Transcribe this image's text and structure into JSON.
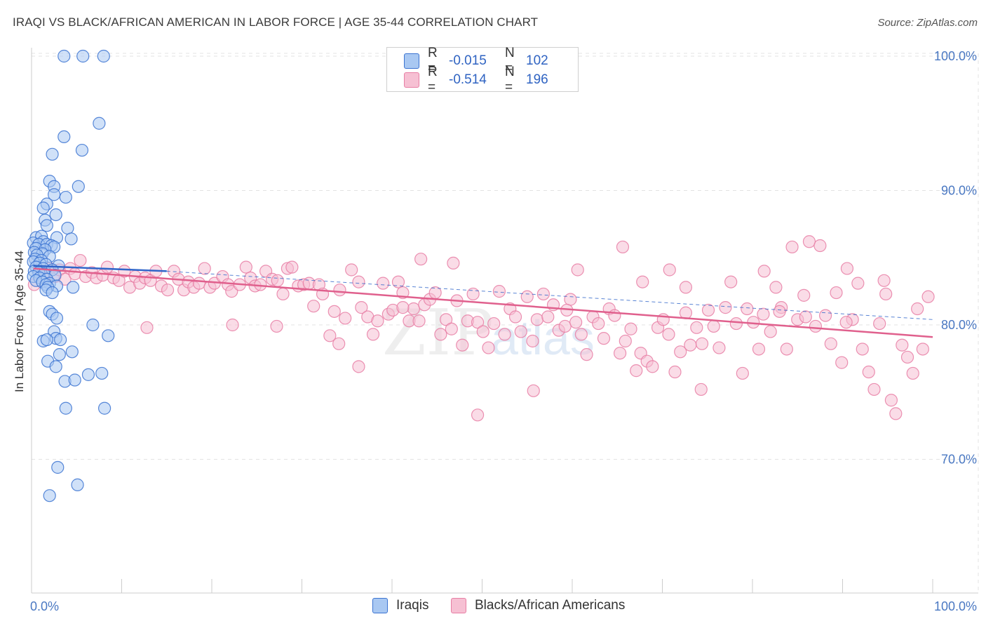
{
  "title": "IRAQI VS BLACK/AFRICAN AMERICAN IN LABOR FORCE | AGE 35-44 CORRELATION CHART",
  "source": "Source: ZipAtlas.com",
  "watermark": "ZIPatlas",
  "colors": {
    "iraqi_fill": "#a9c8f2",
    "iraqi_stroke": "#3b73d1",
    "black_fill": "#f6c0d3",
    "black_stroke": "#e87ea4",
    "iraqi_line": "#3065c9",
    "black_line": "#e0608d",
    "grid": "#e3e3e3",
    "tick_text": "#4a78c2"
  },
  "legend_top": [
    {
      "r_label": "R =",
      "r_value": "-0.015",
      "n_label": "N =",
      "n_value": "102"
    },
    {
      "r_label": "R =",
      "r_value": "-0.514",
      "n_label": "N =",
      "n_value": "196"
    }
  ],
  "legend_bottom": [
    "Iraqis",
    "Blacks/African Americans"
  ],
  "chart_data": {
    "type": "scatter",
    "title": "IRAQI VS BLACK/AFRICAN AMERICAN IN LABOR FORCE | AGE 35-44 CORRELATION CHART",
    "xlabel": "",
    "ylabel": "In Labor Force | Age 35-44",
    "xlim": [
      0,
      100
    ],
    "ylim": [
      60,
      101
    ],
    "x_tick_labels": [
      "0.0%",
      "100.0%"
    ],
    "y_ticks": [
      70,
      80,
      90,
      100
    ],
    "y_tick_labels": [
      "70.0%",
      "80.0%",
      "90.0%",
      "100.0%"
    ],
    "grid": true,
    "legend_placement": "top-center and bottom",
    "series": [
      {
        "name": "Iraqis",
        "r": -0.015,
        "n": 102,
        "trend": {
          "x": [
            0.2,
            15
          ],
          "y": [
            84.4,
            84.0
          ]
        },
        "trend_dashed": {
          "x": [
            15,
            100
          ],
          "y": [
            84.0,
            80.4
          ]
        },
        "points": [
          [
            3.6,
            100
          ],
          [
            5.7,
            100
          ],
          [
            8,
            100
          ],
          [
            7.5,
            95
          ],
          [
            3.6,
            94
          ],
          [
            5.6,
            93
          ],
          [
            2.3,
            92.7
          ],
          [
            2,
            90.7
          ],
          [
            2.5,
            90.3
          ],
          [
            5.2,
            90.3
          ],
          [
            2.5,
            89.7
          ],
          [
            3.8,
            89.5
          ],
          [
            1.7,
            89
          ],
          [
            1.3,
            88.7
          ],
          [
            2.7,
            88.2
          ],
          [
            1.5,
            87.8
          ],
          [
            1.7,
            87.4
          ],
          [
            4,
            87.2
          ],
          [
            0.5,
            86.5
          ],
          [
            1.1,
            86.6
          ],
          [
            4.4,
            86.4
          ],
          [
            2.8,
            86.5
          ],
          [
            1.3,
            86.2
          ],
          [
            0.2,
            86.1
          ],
          [
            0.8,
            86
          ],
          [
            1.7,
            86
          ],
          [
            2.2,
            85.9
          ],
          [
            2.5,
            85.8
          ],
          [
            0.5,
            85.7
          ],
          [
            1.5,
            85.6
          ],
          [
            0.3,
            85.4
          ],
          [
            1.2,
            85.3
          ],
          [
            0.6,
            85.2
          ],
          [
            2,
            85.1
          ],
          [
            0.4,
            84.9
          ],
          [
            1.1,
            84.8
          ],
          [
            0.2,
            84.7
          ],
          [
            0.9,
            84.6
          ],
          [
            1.6,
            84.5
          ],
          [
            3,
            84.4
          ],
          [
            0.5,
            84.3
          ],
          [
            1.3,
            84.2
          ],
          [
            2.3,
            84.1
          ],
          [
            0.3,
            84
          ],
          [
            0.8,
            83.9
          ],
          [
            1.4,
            83.8
          ],
          [
            2.6,
            83.7
          ],
          [
            0.2,
            83.6
          ],
          [
            0.9,
            83.5
          ],
          [
            1.7,
            83.4
          ],
          [
            0.5,
            83.3
          ],
          [
            1.2,
            83.2
          ],
          [
            2,
            83.1
          ],
          [
            1.6,
            83
          ],
          [
            2.8,
            82.9
          ],
          [
            1.8,
            82.8
          ],
          [
            4.6,
            82.8
          ],
          [
            1.6,
            82.6
          ],
          [
            2.3,
            82.4
          ],
          [
            2,
            81
          ],
          [
            2.3,
            80.8
          ],
          [
            2.8,
            80.5
          ],
          [
            2.5,
            79.5
          ],
          [
            2.7,
            79
          ],
          [
            6.8,
            80
          ],
          [
            8.5,
            79.2
          ],
          [
            1.3,
            78.8
          ],
          [
            1.7,
            78.9
          ],
          [
            3.2,
            78.9
          ],
          [
            4.5,
            78
          ],
          [
            3.1,
            77.8
          ],
          [
            1.8,
            77.3
          ],
          [
            2.7,
            76.9
          ],
          [
            6.3,
            76.3
          ],
          [
            7.8,
            76.4
          ],
          [
            3.7,
            75.8
          ],
          [
            4.8,
            75.9
          ],
          [
            3.8,
            73.8
          ],
          [
            8.1,
            73.8
          ],
          [
            2.9,
            69.4
          ],
          [
            5.1,
            68.1
          ],
          [
            2,
            67.3
          ]
        ]
      },
      {
        "name": "Blacks/African Americans",
        "r": -0.514,
        "n": 196,
        "trend": {
          "x": [
            0.2,
            100
          ],
          "y": [
            84.2,
            79.1
          ]
        },
        "points": [
          [
            0.3,
            83
          ],
          [
            1,
            84.1
          ],
          [
            1.5,
            83.8
          ],
          [
            2,
            84.2
          ],
          [
            2.6,
            83.6
          ],
          [
            3.1,
            84.1
          ],
          [
            3.7,
            83.4
          ],
          [
            4.3,
            84.2
          ],
          [
            4.8,
            83.8
          ],
          [
            5.4,
            84.8
          ],
          [
            6,
            83.6
          ],
          [
            6.7,
            83.9
          ],
          [
            7.2,
            83.5
          ],
          [
            7.9,
            83.7
          ],
          [
            8.4,
            84.3
          ],
          [
            9.1,
            83.5
          ],
          [
            9.7,
            83.3
          ],
          [
            10.3,
            84
          ],
          [
            10.9,
            82.8
          ],
          [
            11.5,
            83.6
          ],
          [
            12,
            83.1
          ],
          [
            12.6,
            83.5
          ],
          [
            13.2,
            83.3
          ],
          [
            13.8,
            84
          ],
          [
            14.4,
            82.9
          ],
          [
            15.1,
            82.6
          ],
          [
            15.8,
            84
          ],
          [
            16.3,
            83.4
          ],
          [
            16.9,
            82.6
          ],
          [
            17.4,
            83.2
          ],
          [
            18,
            82.8
          ],
          [
            18.6,
            83.1
          ],
          [
            19.2,
            84.2
          ],
          [
            19.8,
            82.8
          ],
          [
            20.3,
            83.1
          ],
          [
            21.2,
            83.6
          ],
          [
            21.8,
            83
          ],
          [
            22.2,
            82.5
          ],
          [
            23.1,
            83
          ],
          [
            23.8,
            84.3
          ],
          [
            24.3,
            83.5
          ],
          [
            24.8,
            82.9
          ],
          [
            25.4,
            83
          ],
          [
            26,
            84
          ],
          [
            26.7,
            83.4
          ],
          [
            27.3,
            83.3
          ],
          [
            27.9,
            82.3
          ],
          [
            28.4,
            84.2
          ],
          [
            28.9,
            84.3
          ],
          [
            29.6,
            82.9
          ],
          [
            30.2,
            83
          ],
          [
            30.8,
            83.1
          ],
          [
            31.3,
            81.4
          ],
          [
            31.9,
            83
          ],
          [
            32.3,
            82.3
          ],
          [
            33.1,
            79.2
          ],
          [
            33.6,
            81
          ],
          [
            34.2,
            82.6
          ],
          [
            34.8,
            80.5
          ],
          [
            35.5,
            84.1
          ],
          [
            36.3,
            83.2
          ],
          [
            36.6,
            81.3
          ],
          [
            37.3,
            80.6
          ],
          [
            37.9,
            79.3
          ],
          [
            38.4,
            80.3
          ],
          [
            39,
            83.1
          ],
          [
            39.6,
            80.8
          ],
          [
            40.1,
            81.1
          ],
          [
            40.7,
            83.2
          ],
          [
            41.2,
            82.4
          ],
          [
            41.9,
            80.3
          ],
          [
            42.4,
            81.2
          ],
          [
            43,
            80.3
          ],
          [
            43.6,
            81.5
          ],
          [
            44.2,
            81.9
          ],
          [
            44.8,
            82.4
          ],
          [
            45.4,
            79.3
          ],
          [
            46,
            80.4
          ],
          [
            46.6,
            79.7
          ],
          [
            47.2,
            81.8
          ],
          [
            47.8,
            78.5
          ],
          [
            48.4,
            80.3
          ],
          [
            49,
            82.3
          ],
          [
            49.5,
            80.2
          ],
          [
            50.1,
            79.5
          ],
          [
            50.7,
            78.3
          ],
          [
            51.3,
            80.1
          ],
          [
            51.9,
            82.5
          ],
          [
            52.5,
            79.3
          ],
          [
            53.1,
            81.2
          ],
          [
            53.7,
            80.6
          ],
          [
            54.3,
            79.5
          ],
          [
            55,
            82.1
          ],
          [
            55.6,
            78.8
          ],
          [
            56.1,
            80.4
          ],
          [
            56.8,
            82.3
          ],
          [
            57.3,
            80.6
          ],
          [
            57.9,
            81.5
          ],
          [
            58.5,
            79.6
          ],
          [
            59.2,
            79.9
          ],
          [
            59.8,
            81.9
          ],
          [
            60.4,
            80.2
          ],
          [
            61,
            79.3
          ],
          [
            61.6,
            77.8
          ],
          [
            62.3,
            80.6
          ],
          [
            62.9,
            80.1
          ],
          [
            63.5,
            79
          ],
          [
            64.1,
            81.2
          ],
          [
            64.7,
            80.7
          ],
          [
            65.3,
            77.9
          ],
          [
            65.9,
            78.8
          ],
          [
            66.5,
            79.7
          ],
          [
            67.1,
            76.6
          ],
          [
            67.6,
            77.9
          ],
          [
            68.3,
            77.3
          ],
          [
            68.9,
            76.9
          ],
          [
            69.5,
            79.8
          ],
          [
            70.1,
            80.4
          ],
          [
            70.7,
            79.3
          ],
          [
            71.4,
            76.5
          ],
          [
            72,
            78
          ],
          [
            72.6,
            80.9
          ],
          [
            73.1,
            78.5
          ],
          [
            73.8,
            79.8
          ],
          [
            74.4,
            78.6
          ],
          [
            75.1,
            81.1
          ],
          [
            75.7,
            79.9
          ],
          [
            76.3,
            78.3
          ],
          [
            77,
            81.3
          ],
          [
            77.6,
            83.2
          ],
          [
            78.2,
            80.1
          ],
          [
            78.9,
            76.4
          ],
          [
            79.4,
            81.2
          ],
          [
            80.1,
            80.2
          ],
          [
            80.7,
            78.2
          ],
          [
            81.3,
            84
          ],
          [
            82,
            79.5
          ],
          [
            82.6,
            82.8
          ],
          [
            83.2,
            81.3
          ],
          [
            83.8,
            78.2
          ],
          [
            84.4,
            85.8
          ],
          [
            85,
            80.4
          ],
          [
            85.7,
            82.2
          ],
          [
            86.3,
            86.2
          ],
          [
            87,
            79.9
          ],
          [
            87.5,
            85.9
          ],
          [
            88.1,
            80.7
          ],
          [
            88.7,
            78.6
          ],
          [
            89.3,
            82.4
          ],
          [
            89.9,
            77.2
          ],
          [
            90.5,
            84.2
          ],
          [
            91.1,
            80.4
          ],
          [
            91.7,
            83.1
          ],
          [
            92.2,
            78.2
          ],
          [
            92.9,
            76.5
          ],
          [
            93.5,
            75.2
          ],
          [
            94.1,
            80.1
          ],
          [
            94.8,
            82.3
          ],
          [
            95.4,
            74.4
          ],
          [
            95.9,
            73.4
          ],
          [
            96.6,
            78.5
          ],
          [
            97.2,
            77.6
          ],
          [
            97.8,
            76.4
          ],
          [
            98.3,
            81.2
          ],
          [
            98.9,
            78.2
          ],
          [
            99.5,
            82.1
          ],
          [
            49.5,
            73.3
          ],
          [
            55.7,
            75.1
          ],
          [
            74.3,
            75.2
          ],
          [
            59.4,
            81.1
          ],
          [
            43.2,
            84.9
          ],
          [
            83,
            81
          ],
          [
            81.2,
            80.8
          ],
          [
            27.2,
            79.9
          ],
          [
            34.1,
            78.6
          ],
          [
            36.3,
            76.9
          ],
          [
            41.2,
            81.3
          ],
          [
            85.9,
            80.6
          ],
          [
            90.4,
            80.2
          ],
          [
            94.6,
            83.3
          ],
          [
            60.6,
            84.1
          ],
          [
            70.8,
            84.1
          ],
          [
            72.6,
            82.8
          ],
          [
            67.8,
            83.2
          ],
          [
            46.8,
            84.6
          ],
          [
            65.6,
            85.8
          ],
          [
            12.8,
            79.8
          ],
          [
            22.3,
            80
          ]
        ]
      }
    ]
  }
}
